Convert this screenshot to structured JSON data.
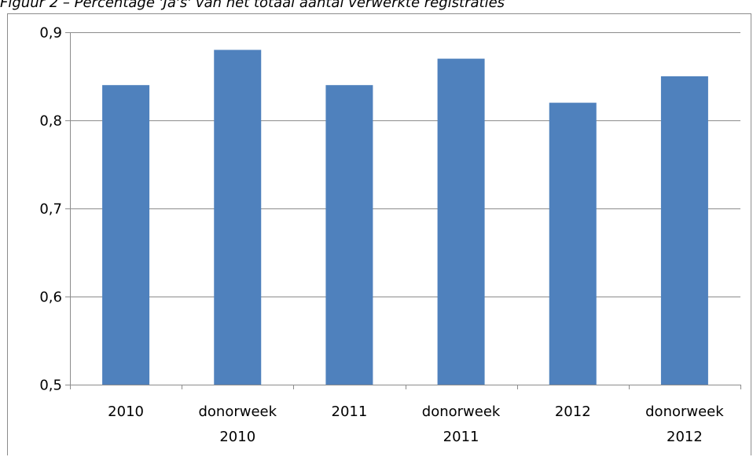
{
  "caption": "Figuur 2 – Percentage 'Ja's' van het totaal aantal verwerkte registraties",
  "chart_data": {
    "type": "bar",
    "categories": [
      [
        "2010"
      ],
      [
        "donorweek",
        "2010"
      ],
      [
        "2011"
      ],
      [
        "donorweek",
        "2011"
      ],
      [
        "2012"
      ],
      [
        "donorweek",
        "2012"
      ]
    ],
    "values": [
      0.84,
      0.88,
      0.84,
      0.87,
      0.82,
      0.85
    ],
    "y_ticks": [
      "0,5",
      "0,6",
      "0,7",
      "0,8",
      "0,9"
    ],
    "y_tick_values": [
      0.5,
      0.6,
      0.7,
      0.8,
      0.9
    ],
    "ylim": [
      0.5,
      0.9
    ],
    "grid": true,
    "legend": false,
    "bar_color": "#4f81bd",
    "grid_color": "#8c8c8c",
    "axis_color": "#8c8c8c"
  }
}
